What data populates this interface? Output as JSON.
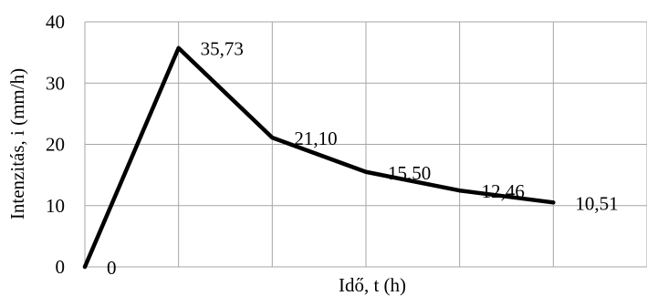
{
  "chart_data": {
    "type": "line",
    "title": "",
    "xlabel": "Idő, t (h)",
    "ylabel": "Intenzitás, i (mm/h)",
    "x": [
      0,
      1,
      2,
      3,
      4,
      5
    ],
    "values": [
      0,
      35.73,
      21.1,
      15.5,
      12.46,
      10.51
    ],
    "data_labels": [
      "0",
      "35,73",
      "21,10",
      "15,50",
      "12,46",
      "10,51"
    ],
    "xlim": [
      0,
      6
    ],
    "ylim": [
      0,
      40
    ],
    "y_ticks": [
      0,
      10,
      20,
      30,
      40
    ],
    "y_tick_labels": [
      "0",
      "10",
      "20",
      "30",
      "40"
    ],
    "grid": true,
    "legend": "none",
    "line_color": "#000000",
    "grid_color": "#a6a6a6"
  }
}
